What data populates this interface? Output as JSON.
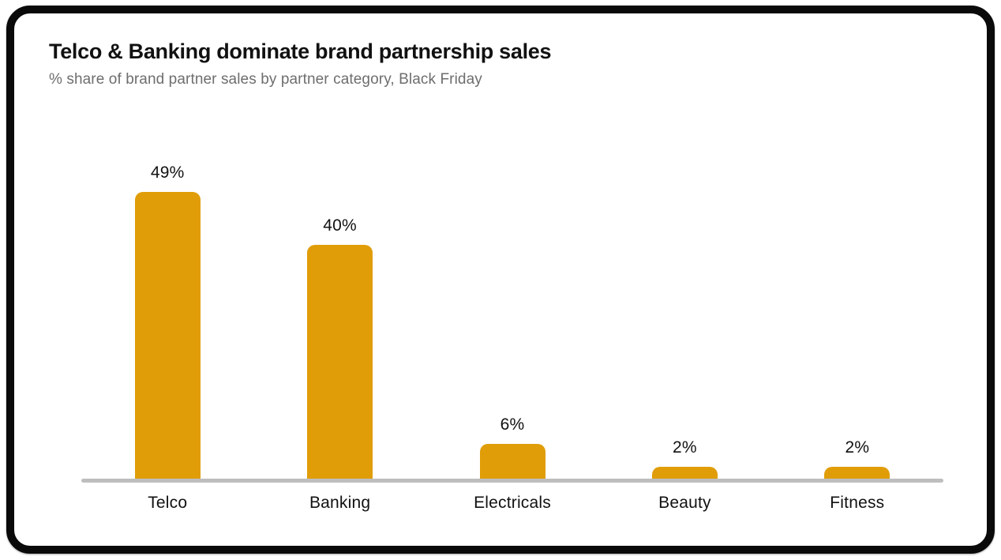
{
  "card": {
    "title": "Telco & Banking dominate brand partnership sales",
    "subtitle": "% share of brand partner sales by partner category, Black Friday"
  },
  "chart_data": {
    "type": "bar",
    "title": "Telco & Banking dominate brand partnership sales",
    "subtitle": "% share of brand partner sales by partner category, Black Friday",
    "categories": [
      "Telco",
      "Banking",
      "Electricals",
      "Beauty",
      "Fitness"
    ],
    "values": [
      49,
      40,
      6,
      2,
      2
    ],
    "value_labels": [
      "49%",
      "40%",
      "6%",
      "2%",
      "2%"
    ],
    "xlabel": "",
    "ylabel": "",
    "ylim": [
      0,
      53
    ],
    "grid": false,
    "legend": false,
    "yaxis_visible": false,
    "colors": {
      "bar": "#E09D08",
      "baseline": "#BEBEBE",
      "title": "#111111",
      "subtitle": "#6E6E6E",
      "card_border": "#0A0A0A",
      "background": "#FFFFFF"
    }
  }
}
